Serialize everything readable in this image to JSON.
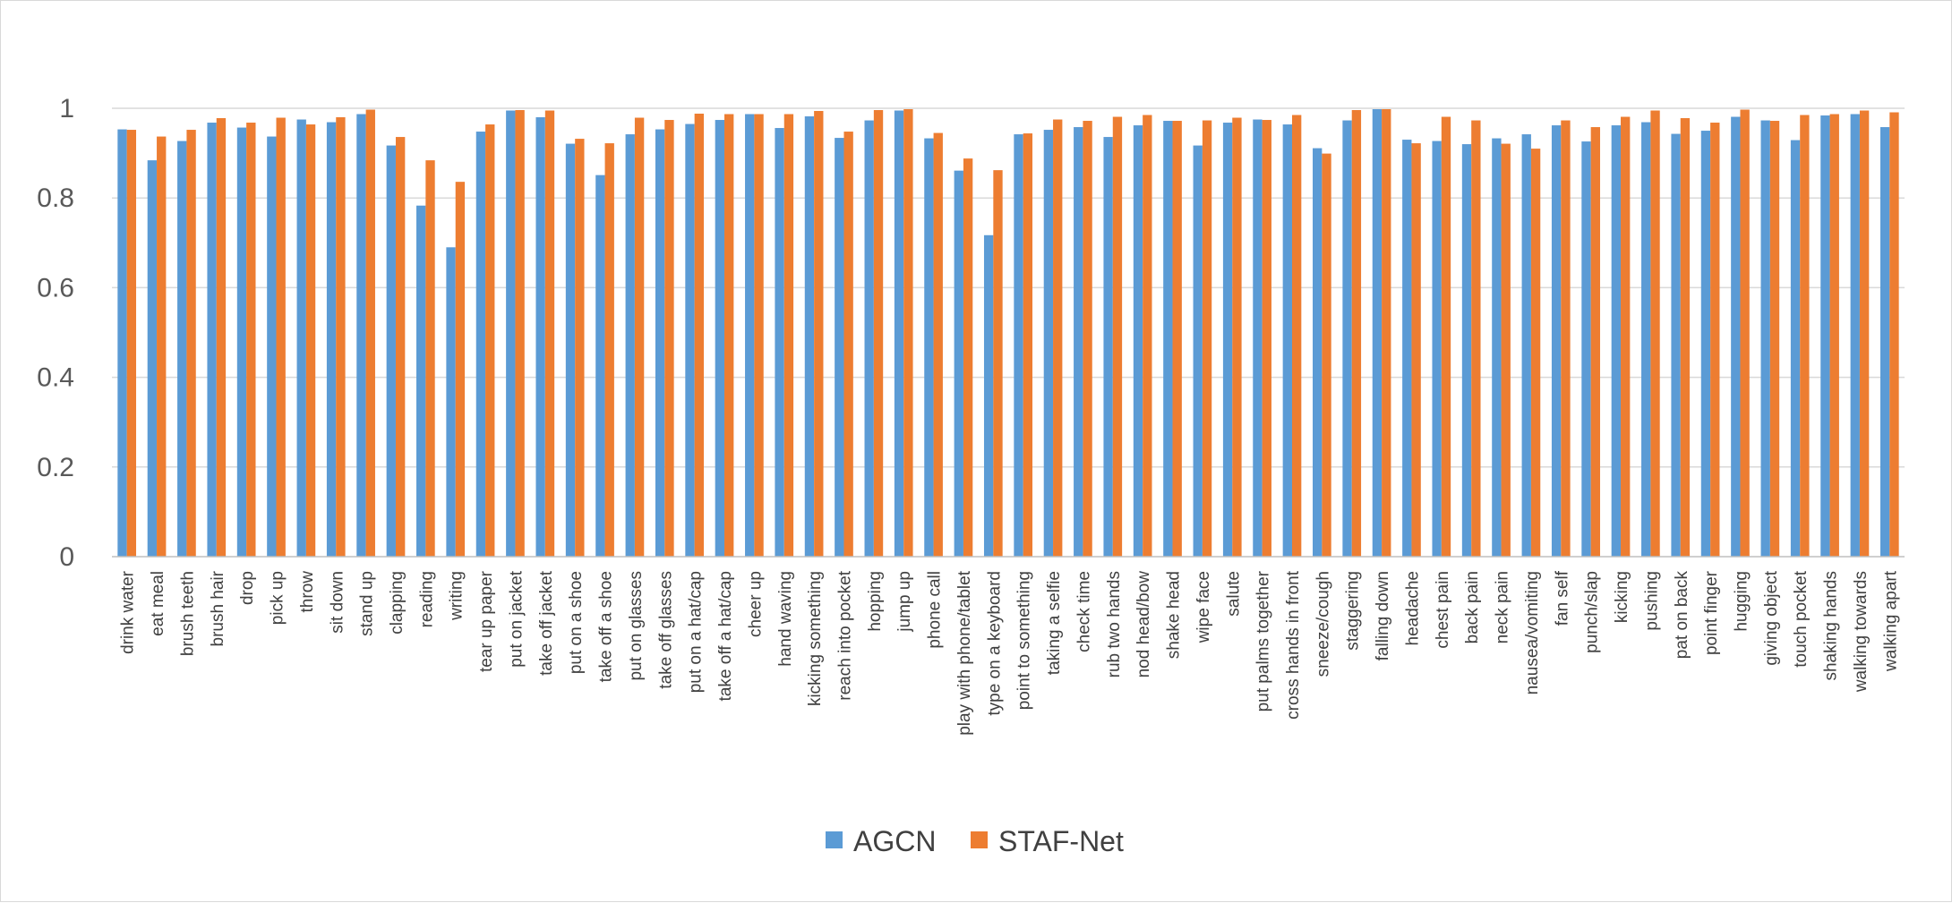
{
  "chart_data": {
    "type": "bar",
    "title": "",
    "xlabel": "",
    "ylabel": "",
    "ylim": [
      0,
      1
    ],
    "yticks": [
      0,
      0.2,
      0.4,
      0.6,
      0.8,
      1
    ],
    "ytick_labels": [
      "0",
      "0.2",
      "0.4",
      "0.6",
      "0.8",
      "1"
    ],
    "grid": true,
    "legend_position": "bottom",
    "categories": [
      "drink water",
      "eat meal",
      "brush teeth",
      "brush hair",
      "drop",
      "pick up",
      "throw",
      "sit down",
      "stand up",
      "clapping",
      "reading",
      "writing",
      "tear up paper",
      "put on jacket",
      "take off jacket",
      "put on a shoe",
      "take off a shoe",
      "put on glasses",
      "take off glasses",
      "put on a hat/cap",
      "take off a hat/cap",
      "cheer up",
      "hand waving",
      "kicking something",
      "reach into pocket",
      "hopping",
      "jump up",
      "phone call",
      "play with phone/tablet",
      "type on a keyboard",
      "point to something",
      "taking a selfie",
      "check time",
      "rub two hands",
      "nod head/bow",
      "shake head",
      "wipe face",
      "salute",
      "put palms together",
      "cross hands in front",
      "sneeze/cough",
      "staggering",
      "falling down",
      "headache",
      "chest pain",
      "back pain",
      "neck pain",
      "nausea/vomiting",
      "fan self",
      "punch/slap",
      "kicking",
      "pushing",
      "pat on back",
      "point finger",
      "hugging",
      "giving object",
      "touch pocket",
      "shaking hands",
      "walking towards",
      "walking apart"
    ],
    "series": [
      {
        "name": "AGCN",
        "color": "#5B9BD5",
        "values": [
          0.953,
          0.884,
          0.927,
          0.968,
          0.957,
          0.937,
          0.975,
          0.969,
          0.987,
          0.917,
          0.783,
          0.69,
          0.948,
          0.995,
          0.98,
          0.921,
          0.851,
          0.942,
          0.953,
          0.965,
          0.974,
          0.987,
          0.956,
          0.982,
          0.934,
          0.973,
          0.995,
          0.933,
          0.861,
          0.717,
          0.942,
          0.952,
          0.958,
          0.936,
          0.962,
          0.972,
          0.917,
          0.968,
          0.975,
          0.964,
          0.911,
          0.973,
          0.998,
          0.93,
          0.927,
          0.92,
          0.933,
          0.942,
          0.962,
          0.926,
          0.962,
          0.969,
          0.943,
          0.95,
          0.981,
          0.973,
          0.929,
          0.984,
          0.987,
          0.958
        ]
      },
      {
        "name": "STAF-Net",
        "color": "#ED7D31",
        "values": [
          0.952,
          0.937,
          0.952,
          0.978,
          0.968,
          0.979,
          0.964,
          0.98,
          0.997,
          0.936,
          0.884,
          0.836,
          0.964,
          0.996,
          0.995,
          0.932,
          0.922,
          0.979,
          0.974,
          0.988,
          0.987,
          0.987,
          0.987,
          0.994,
          0.948,
          0.996,
          0.998,
          0.945,
          0.888,
          0.862,
          0.944,
          0.975,
          0.972,
          0.981,
          0.985,
          0.972,
          0.973,
          0.979,
          0.974,
          0.985,
          0.899,
          0.996,
          0.998,
          0.922,
          0.981,
          0.973,
          0.921,
          0.91,
          0.973,
          0.958,
          0.981,
          0.995,
          0.978,
          0.968,
          0.997,
          0.972,
          0.985,
          0.987,
          0.995,
          0.991
        ]
      }
    ]
  },
  "legend": {
    "items": [
      {
        "label": "AGCN",
        "color": "#5B9BD5"
      },
      {
        "label": "STAF-Net",
        "color": "#ED7D31"
      }
    ]
  },
  "style": {
    "grid_color": "#d9d9d9",
    "axis_color": "#bfbfbf"
  }
}
